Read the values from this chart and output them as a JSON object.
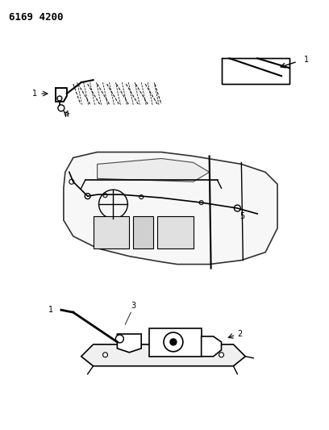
{
  "title": "6169 4200",
  "background_color": "#ffffff",
  "line_color": "#000000",
  "figsize": [
    4.08,
    5.33
  ],
  "dpi": 100
}
